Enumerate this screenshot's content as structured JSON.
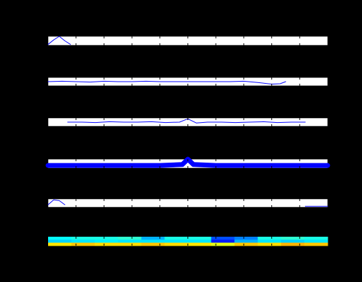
{
  "chart_data": [
    {
      "type": "line",
      "color": "#0000ff",
      "linewidth": 1,
      "xlim": [
        0,
        100
      ],
      "ylim": [
        0,
        1
      ],
      "xticks": [
        10,
        20,
        30,
        40,
        50,
        60,
        70,
        80,
        90
      ],
      "x": [
        0,
        2,
        4,
        6,
        8
      ],
      "values": [
        0.1,
        0.6,
        1.0,
        0.5,
        0.1
      ]
    },
    {
      "type": "line",
      "color": "#0000ff",
      "linewidth": 1,
      "xlim": [
        0,
        100
      ],
      "ylim": [
        0,
        1
      ],
      "xticks": [
        10,
        20,
        30,
        40,
        50,
        60,
        70,
        80,
        90
      ],
      "x": [
        0,
        5,
        10,
        15,
        20,
        25,
        30,
        35,
        40,
        45,
        50,
        55,
        60,
        65,
        70,
        75,
        80,
        83,
        85
      ],
      "values": [
        0.5,
        0.55,
        0.5,
        0.45,
        0.55,
        0.5,
        0.5,
        0.55,
        0.5,
        0.5,
        0.5,
        0.5,
        0.5,
        0.5,
        0.55,
        0.4,
        0.2,
        0.25,
        0.5
      ]
    },
    {
      "type": "line",
      "color": "#0000ff",
      "linewidth": 1,
      "xlim": [
        0,
        100
      ],
      "ylim": [
        0,
        1
      ],
      "xticks": [
        10,
        20,
        30,
        40,
        50,
        60,
        70,
        80,
        90
      ],
      "x": [
        7,
        12,
        17,
        22,
        27,
        32,
        37,
        42,
        47,
        50,
        53,
        57,
        62,
        67,
        72,
        77,
        82,
        87,
        92
      ],
      "values": [
        0.5,
        0.5,
        0.45,
        0.55,
        0.5,
        0.5,
        0.55,
        0.45,
        0.5,
        0.9,
        0.4,
        0.5,
        0.5,
        0.45,
        0.5,
        0.55,
        0.45,
        0.5,
        0.5
      ]
    },
    {
      "type": "line",
      "color": "#0000ff",
      "linewidth": 7,
      "xlim": [
        0,
        100
      ],
      "ylim": [
        0,
        1
      ],
      "xticks": [
        10,
        20,
        30,
        40,
        50,
        60,
        70,
        80,
        90
      ],
      "x": [
        0,
        10,
        20,
        30,
        40,
        48,
        50,
        52,
        60,
        70,
        80,
        90,
        100
      ],
      "values": [
        0.3,
        0.3,
        0.3,
        0.3,
        0.3,
        0.4,
        1.0,
        0.4,
        0.3,
        0.3,
        0.3,
        0.3,
        0.3
      ]
    },
    {
      "type": "line",
      "color": "#0000ff",
      "linewidth": 1,
      "xlim": [
        0,
        100
      ],
      "ylim": [
        0,
        1
      ],
      "xticks": [
        10,
        20,
        30,
        40,
        50,
        60,
        70,
        80,
        90
      ],
      "x": [
        0,
        2,
        4,
        6,
        7,
        92,
        100
      ],
      "values": [
        0.3,
        0.9,
        0.8,
        0.3,
        null,
        0.1,
        0.1
      ]
    },
    {
      "type": "heatmap",
      "xlim": [
        0,
        100
      ],
      "clim": [
        0,
        1
      ],
      "xticks": [
        10,
        20,
        30,
        40,
        50,
        60,
        70,
        80,
        90
      ],
      "values": [
        [
          0.38,
          0.4,
          0.4,
          0.42,
          0.3,
          0.4,
          0.4,
          0.2,
          0.25,
          0.4,
          0.42,
          0.4
        ],
        [
          0.33,
          0.35,
          0.36,
          0.35,
          0.35,
          0.35,
          0.35,
          0.15,
          0.3,
          0.35,
          0.33,
          0.35
        ],
        [
          0.65,
          0.68,
          0.66,
          0.66,
          0.68,
          0.66,
          0.65,
          0.6,
          0.68,
          0.66,
          0.7,
          0.68
        ]
      ]
    }
  ]
}
